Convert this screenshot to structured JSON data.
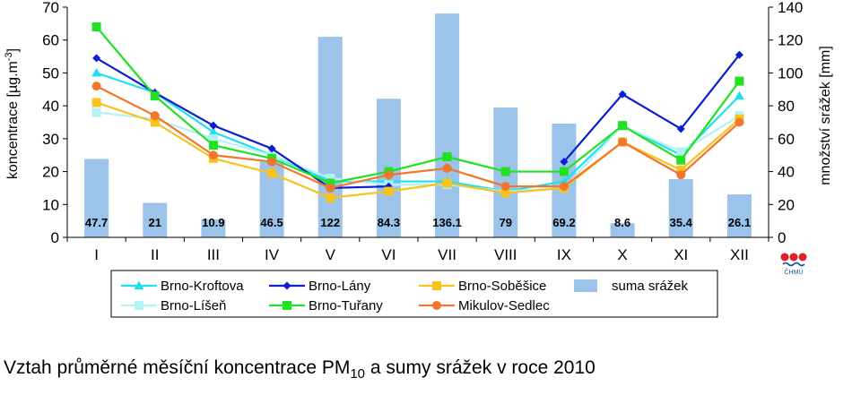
{
  "chart_data": {
    "type": "bar+line",
    "categories": [
      "I",
      "II",
      "III",
      "IV",
      "V",
      "VI",
      "VII",
      "VIII",
      "IX",
      "X",
      "XI",
      "XII"
    ],
    "y_left": {
      "label": "koncentrace [µg.m",
      "label_sup": "-3",
      "label_end": "]",
      "range": [
        0,
        70
      ],
      "ticks": [
        "0",
        "10",
        "20",
        "30",
        "40",
        "50",
        "60",
        "70"
      ]
    },
    "y_right": {
      "label": "množství srážek [mm]",
      "range": [
        0,
        140
      ],
      "ticks": [
        "0",
        "20",
        "40",
        "60",
        "80",
        "100",
        "120",
        "140"
      ]
    },
    "bars": {
      "name": "suma srážek",
      "color": "#9cc3ea",
      "values": [
        47.7,
        21,
        10.9,
        46.5,
        122,
        84.3,
        136.1,
        79,
        69.2,
        8.6,
        35.4,
        26.1
      ],
      "labels": [
        "47.7",
        "21",
        "10.9",
        "46.5",
        "122",
        "84.3",
        "136.1",
        "79",
        "69.2",
        "8.6",
        "35.4",
        "26.1"
      ]
    },
    "series": [
      {
        "name": "Brno-Kroftova",
        "color": "#1ee0ee",
        "marker": "triangle",
        "values": [
          50,
          44,
          32,
          25,
          17,
          17,
          17,
          14,
          17,
          34,
          25,
          43
        ]
      },
      {
        "name": "Brno-Líšeň",
        "color": "#b4f2f6",
        "marker": "square",
        "values": [
          38,
          36,
          30,
          25,
          18,
          16,
          16,
          14,
          15,
          34,
          26,
          37
        ]
      },
      {
        "name": "Brno-Lány",
        "color": "#0a1ecf",
        "marker": "diamond",
        "values": [
          54.5,
          44,
          34,
          27,
          15,
          15.5,
          null,
          null,
          23,
          43.5,
          33,
          55.5
        ]
      },
      {
        "name": "Brno-Tuřany",
        "color": "#22e022",
        "marker": "square",
        "values": [
          64,
          43,
          28,
          24,
          16.5,
          20,
          24.5,
          20,
          20,
          34,
          23.5,
          47.5
        ]
      },
      {
        "name": "Brno-Soběšice",
        "color": "#f7c31c",
        "marker": "square",
        "values": [
          41,
          35,
          24,
          19.5,
          12,
          14,
          16.5,
          13.5,
          15,
          29,
          20.5,
          36
        ]
      },
      {
        "name": "Mikulov-Sedlec",
        "color": "#f2772e",
        "marker": "circle",
        "values": [
          46,
          37,
          25,
          23,
          15,
          19,
          21,
          15.5,
          15.5,
          29,
          19,
          35
        ]
      }
    ],
    "legend": [
      {
        "name": "Brno-Kroftova",
        "type": "line",
        "marker": "triangle",
        "color": "#1ee0ee"
      },
      {
        "name": "Brno-Lány",
        "type": "line",
        "marker": "diamond",
        "color": "#0a1ecf"
      },
      {
        "name": "Brno-Soběšice",
        "type": "line",
        "marker": "square",
        "color": "#f7c31c"
      },
      {
        "name": "suma srážek",
        "type": "bar",
        "color": "#9cc3ea"
      },
      {
        "name": "Brno-Líšeň",
        "type": "line",
        "marker": "square",
        "color": "#b4f2f6"
      },
      {
        "name": "Brno-Tuřany",
        "type": "line",
        "marker": "square",
        "color": "#22e022"
      },
      {
        "name": "Mikulov-Sedlec",
        "type": "line",
        "marker": "circle",
        "color": "#f2772e"
      }
    ],
    "legend_position": "bottom",
    "grid": false
  },
  "logo": {
    "text": "ČHMÚ"
  },
  "caption": {
    "prefix": "Vztah průměrné měsíční koncentrace PM",
    "sub": "10",
    "suffix": " a sumy srážek v roce 2010"
  }
}
